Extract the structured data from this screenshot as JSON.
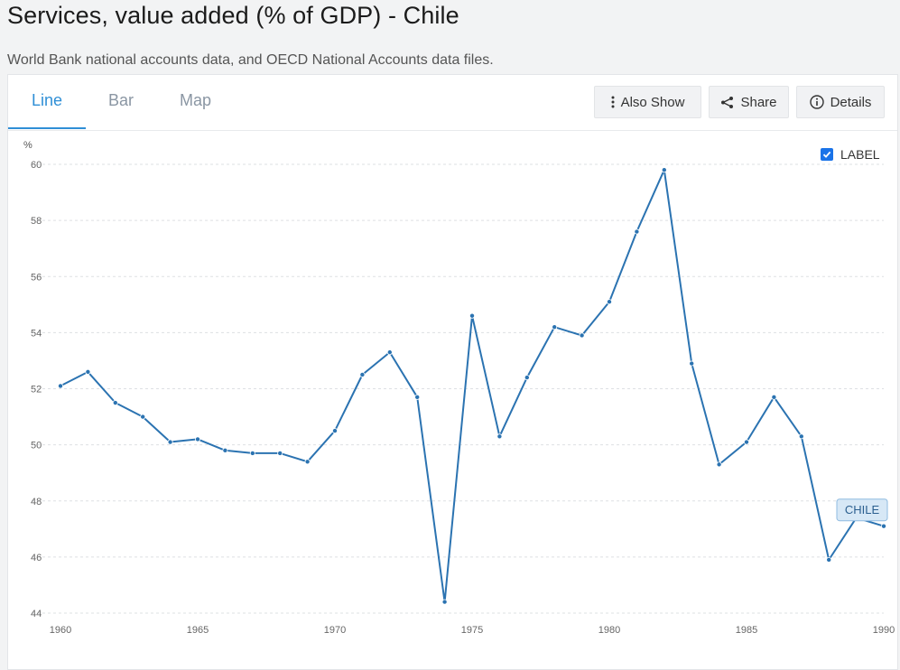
{
  "header": {
    "title": "Services, value added (% of GDP) - Chile",
    "subtitle": "World Bank national accounts data, and OECD National Accounts data files."
  },
  "tabs": [
    {
      "label": "Line",
      "active": true
    },
    {
      "label": "Bar",
      "active": false
    },
    {
      "label": "Map",
      "active": false
    }
  ],
  "toolbar": {
    "also_show": "Also Show",
    "share": "Share",
    "details": "Details"
  },
  "legend": {
    "label_toggle": "LABEL",
    "checked": true
  },
  "colors": {
    "accent": "#2f8fd6",
    "line": "#2b73b1",
    "checkbox": "#1a73e8"
  },
  "chart_data": {
    "type": "line",
    "ylabel": "%",
    "xlabel": "",
    "ylim": [
      44,
      60
    ],
    "xlim": [
      1960,
      1990
    ],
    "yticks": [
      44,
      46,
      48,
      50,
      52,
      54,
      56,
      58,
      60
    ],
    "xticks": [
      1960,
      1965,
      1970,
      1975,
      1980,
      1985,
      1990
    ],
    "grid": true,
    "series": [
      {
        "name": "CHILE",
        "x": [
          1960,
          1961,
          1962,
          1963,
          1964,
          1965,
          1966,
          1967,
          1968,
          1969,
          1970,
          1971,
          1972,
          1973,
          1974,
          1975,
          1976,
          1977,
          1978,
          1979,
          1980,
          1981,
          1982,
          1983,
          1984,
          1985,
          1986,
          1987,
          1988,
          1989,
          1990
        ],
        "values": [
          52.1,
          52.6,
          51.5,
          51.0,
          50.1,
          50.2,
          49.8,
          49.7,
          49.7,
          49.4,
          50.5,
          52.5,
          53.3,
          51.7,
          44.4,
          54.6,
          50.3,
          52.4,
          54.2,
          53.9,
          55.1,
          57.6,
          59.8,
          52.9,
          49.3,
          50.1,
          51.7,
          50.3,
          45.9,
          47.4,
          47.1
        ]
      }
    ]
  }
}
